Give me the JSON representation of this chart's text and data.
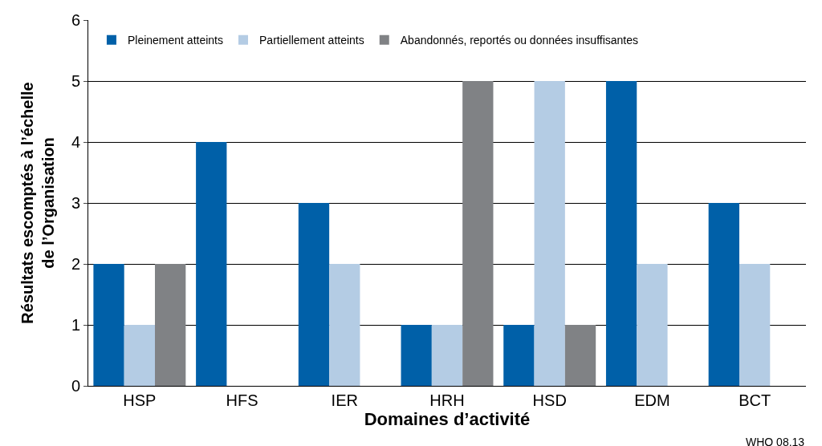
{
  "chart_data": {
    "type": "bar",
    "xlabel": "Domaines d’activité",
    "ylabel": "Résultats escomptés à l’échelle\nde l’Organisation",
    "categories": [
      "HSP",
      "HFS",
      "IER",
      "HRH",
      "HSD",
      "EDM",
      "BCT"
    ],
    "series": [
      {
        "name": "Pleinement atteints",
        "color": "#0060a8",
        "values": [
          2,
          4,
          3,
          1,
          1,
          5,
          3
        ]
      },
      {
        "name": "Partiellement atteints",
        "color": "#b4cce4",
        "values": [
          1,
          null,
          2,
          1,
          5,
          2,
          2
        ]
      },
      {
        "name": "Abandonnés, reportés ou données insuffisantes",
        "color": "#808285",
        "values": [
          2,
          null,
          null,
          5,
          1,
          null,
          null
        ]
      }
    ],
    "ylim": [
      0,
      6
    ],
    "yticks": [
      0,
      1,
      2,
      3,
      4,
      5,
      6
    ],
    "grid": "y",
    "legend": "top left",
    "annotations": [
      "WHO 08.13"
    ]
  }
}
